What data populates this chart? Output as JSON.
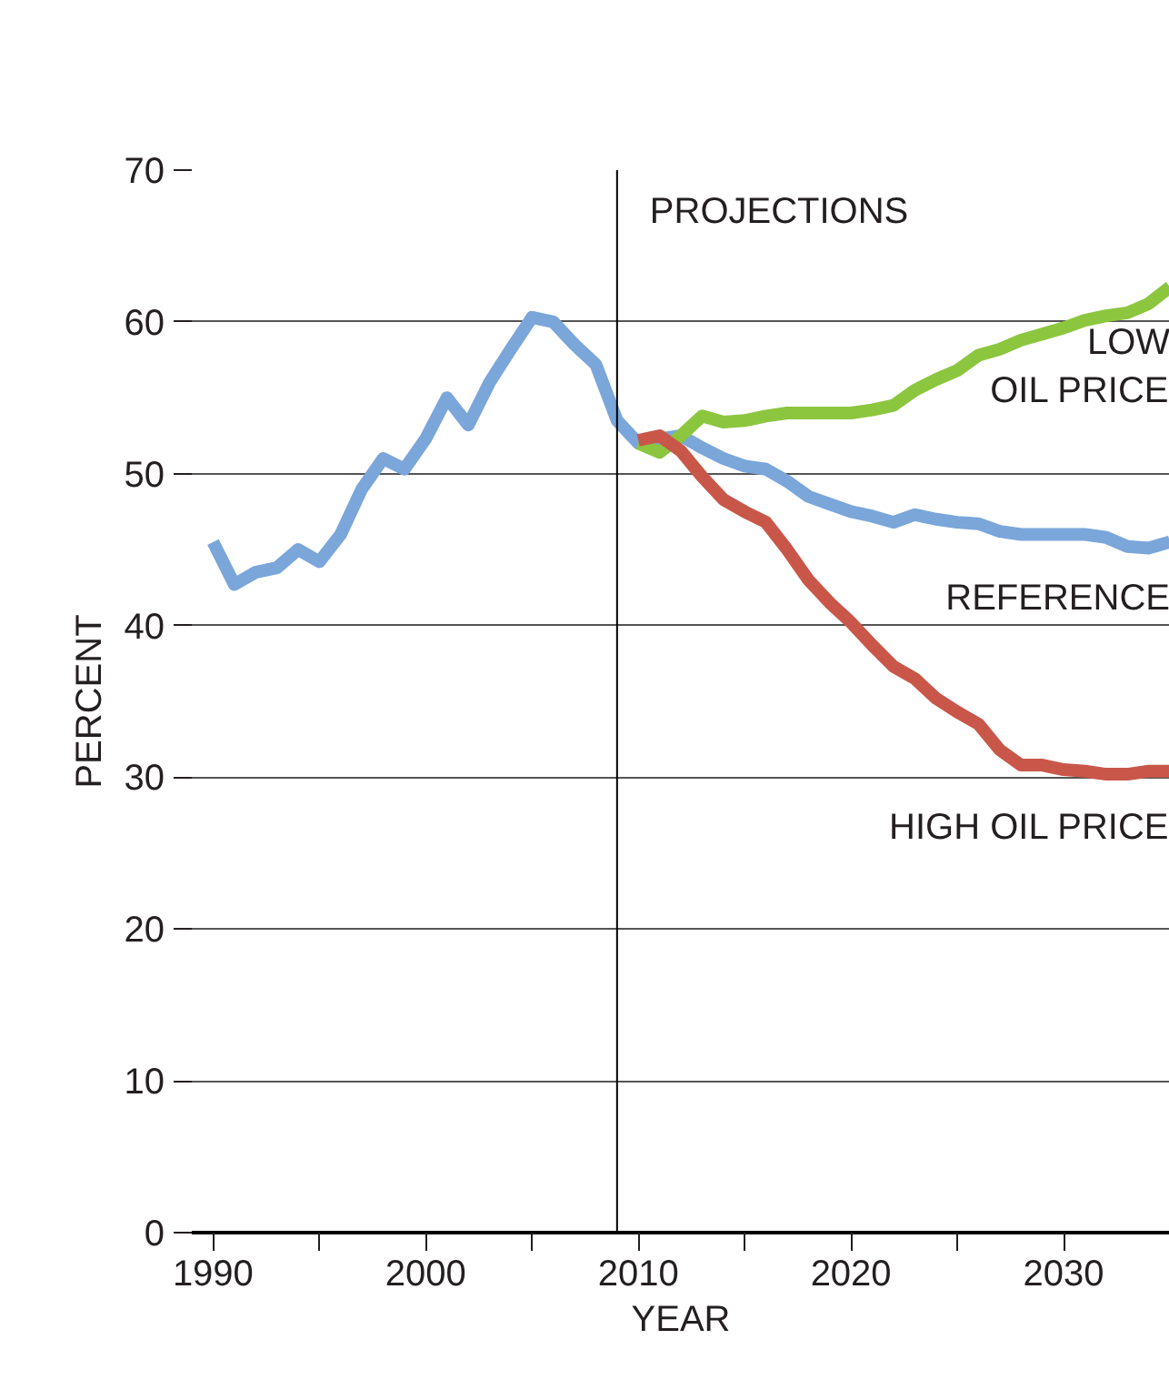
{
  "chart_data": {
    "type": "line",
    "xlabel": "YEAR",
    "ylabel": "PERCENT",
    "xlim": [
      1989,
      2035
    ],
    "ylim": [
      0,
      70
    ],
    "xticks": [
      1990,
      {
        "value": 1995,
        "label": null
      },
      2000,
      {
        "value": 2005,
        "label": null
      },
      2010,
      {
        "value": 2015,
        "label": null
      },
      2020,
      {
        "value": 2025,
        "label": null
      },
      2030,
      {
        "value": 2035,
        "label": null
      }
    ],
    "yticks": [
      0,
      10,
      20,
      30,
      40,
      50,
      60,
      70
    ],
    "grid": "y",
    "line_style": "solid",
    "ref_lines": [
      {
        "axis": "x",
        "value": 2009,
        "label": "PROJECTIONS",
        "color": "#000000"
      }
    ],
    "series": [
      {
        "name": "REFERENCE",
        "color": "#7aa6da",
        "x": [
          1990,
          1991,
          1992,
          1993,
          1994,
          1995,
          1996,
          1997,
          1998,
          1999,
          2000,
          2001,
          2002,
          2003,
          2004,
          2005,
          2006,
          2007,
          2008,
          2009,
          2010,
          2011,
          2012,
          2013,
          2014,
          2015,
          2016,
          2017,
          2018,
          2019,
          2020,
          2021,
          2022,
          2023,
          2024,
          2025,
          2026,
          2027,
          2028,
          2029,
          2030,
          2031,
          2032,
          2033,
          2034,
          2035
        ],
        "values": [
          45.5,
          42.7,
          43.5,
          43.8,
          45.0,
          44.2,
          46.0,
          49.0,
          51.0,
          50.3,
          52.3,
          55.0,
          53.2,
          56.0,
          58.2,
          60.3,
          60.0,
          58.5,
          57.2,
          53.5,
          52.0,
          52.3,
          52.5,
          51.7,
          51.0,
          50.5,
          50.3,
          49.5,
          48.5,
          48.0,
          47.5,
          47.2,
          46.8,
          47.3,
          47.0,
          46.8,
          46.7,
          46.2,
          46.0,
          46.0,
          46.0,
          46.0,
          45.8,
          45.2,
          45.1,
          45.5
        ]
      },
      {
        "name": "LOW\nOIL PRICE",
        "color": "#8cc63f",
        "x": [
          2010,
          2011,
          2012,
          2013,
          2014,
          2015,
          2016,
          2017,
          2018,
          2019,
          2020,
          2021,
          2022,
          2023,
          2024,
          2025,
          2026,
          2027,
          2028,
          2029,
          2030,
          2031,
          2032,
          2033,
          2034,
          2035
        ],
        "values": [
          52.0,
          51.4,
          52.5,
          53.8,
          53.4,
          53.5,
          53.8,
          54.0,
          54.0,
          54.0,
          54.0,
          54.2,
          54.5,
          55.5,
          56.2,
          56.8,
          57.8,
          58.2,
          58.8,
          59.2,
          59.6,
          60.1,
          60.4,
          60.6,
          61.2,
          62.3
        ]
      },
      {
        "name": "HIGH OIL PRICE",
        "color": "#c8574a",
        "x": [
          2010,
          2011,
          2012,
          2013,
          2014,
          2015,
          2016,
          2017,
          2018,
          2019,
          2020,
          2021,
          2022,
          2023,
          2024,
          2025,
          2026,
          2027,
          2028,
          2029,
          2030,
          2031,
          2032,
          2033,
          2034,
          2035
        ],
        "values": [
          52.2,
          52.5,
          51.5,
          49.8,
          48.3,
          47.5,
          46.8,
          45.0,
          43.0,
          41.5,
          40.2,
          38.7,
          37.3,
          36.5,
          35.2,
          34.3,
          33.5,
          31.8,
          30.8,
          30.8,
          30.5,
          30.4,
          30.2,
          30.2,
          30.4,
          30.4
        ]
      }
    ]
  }
}
